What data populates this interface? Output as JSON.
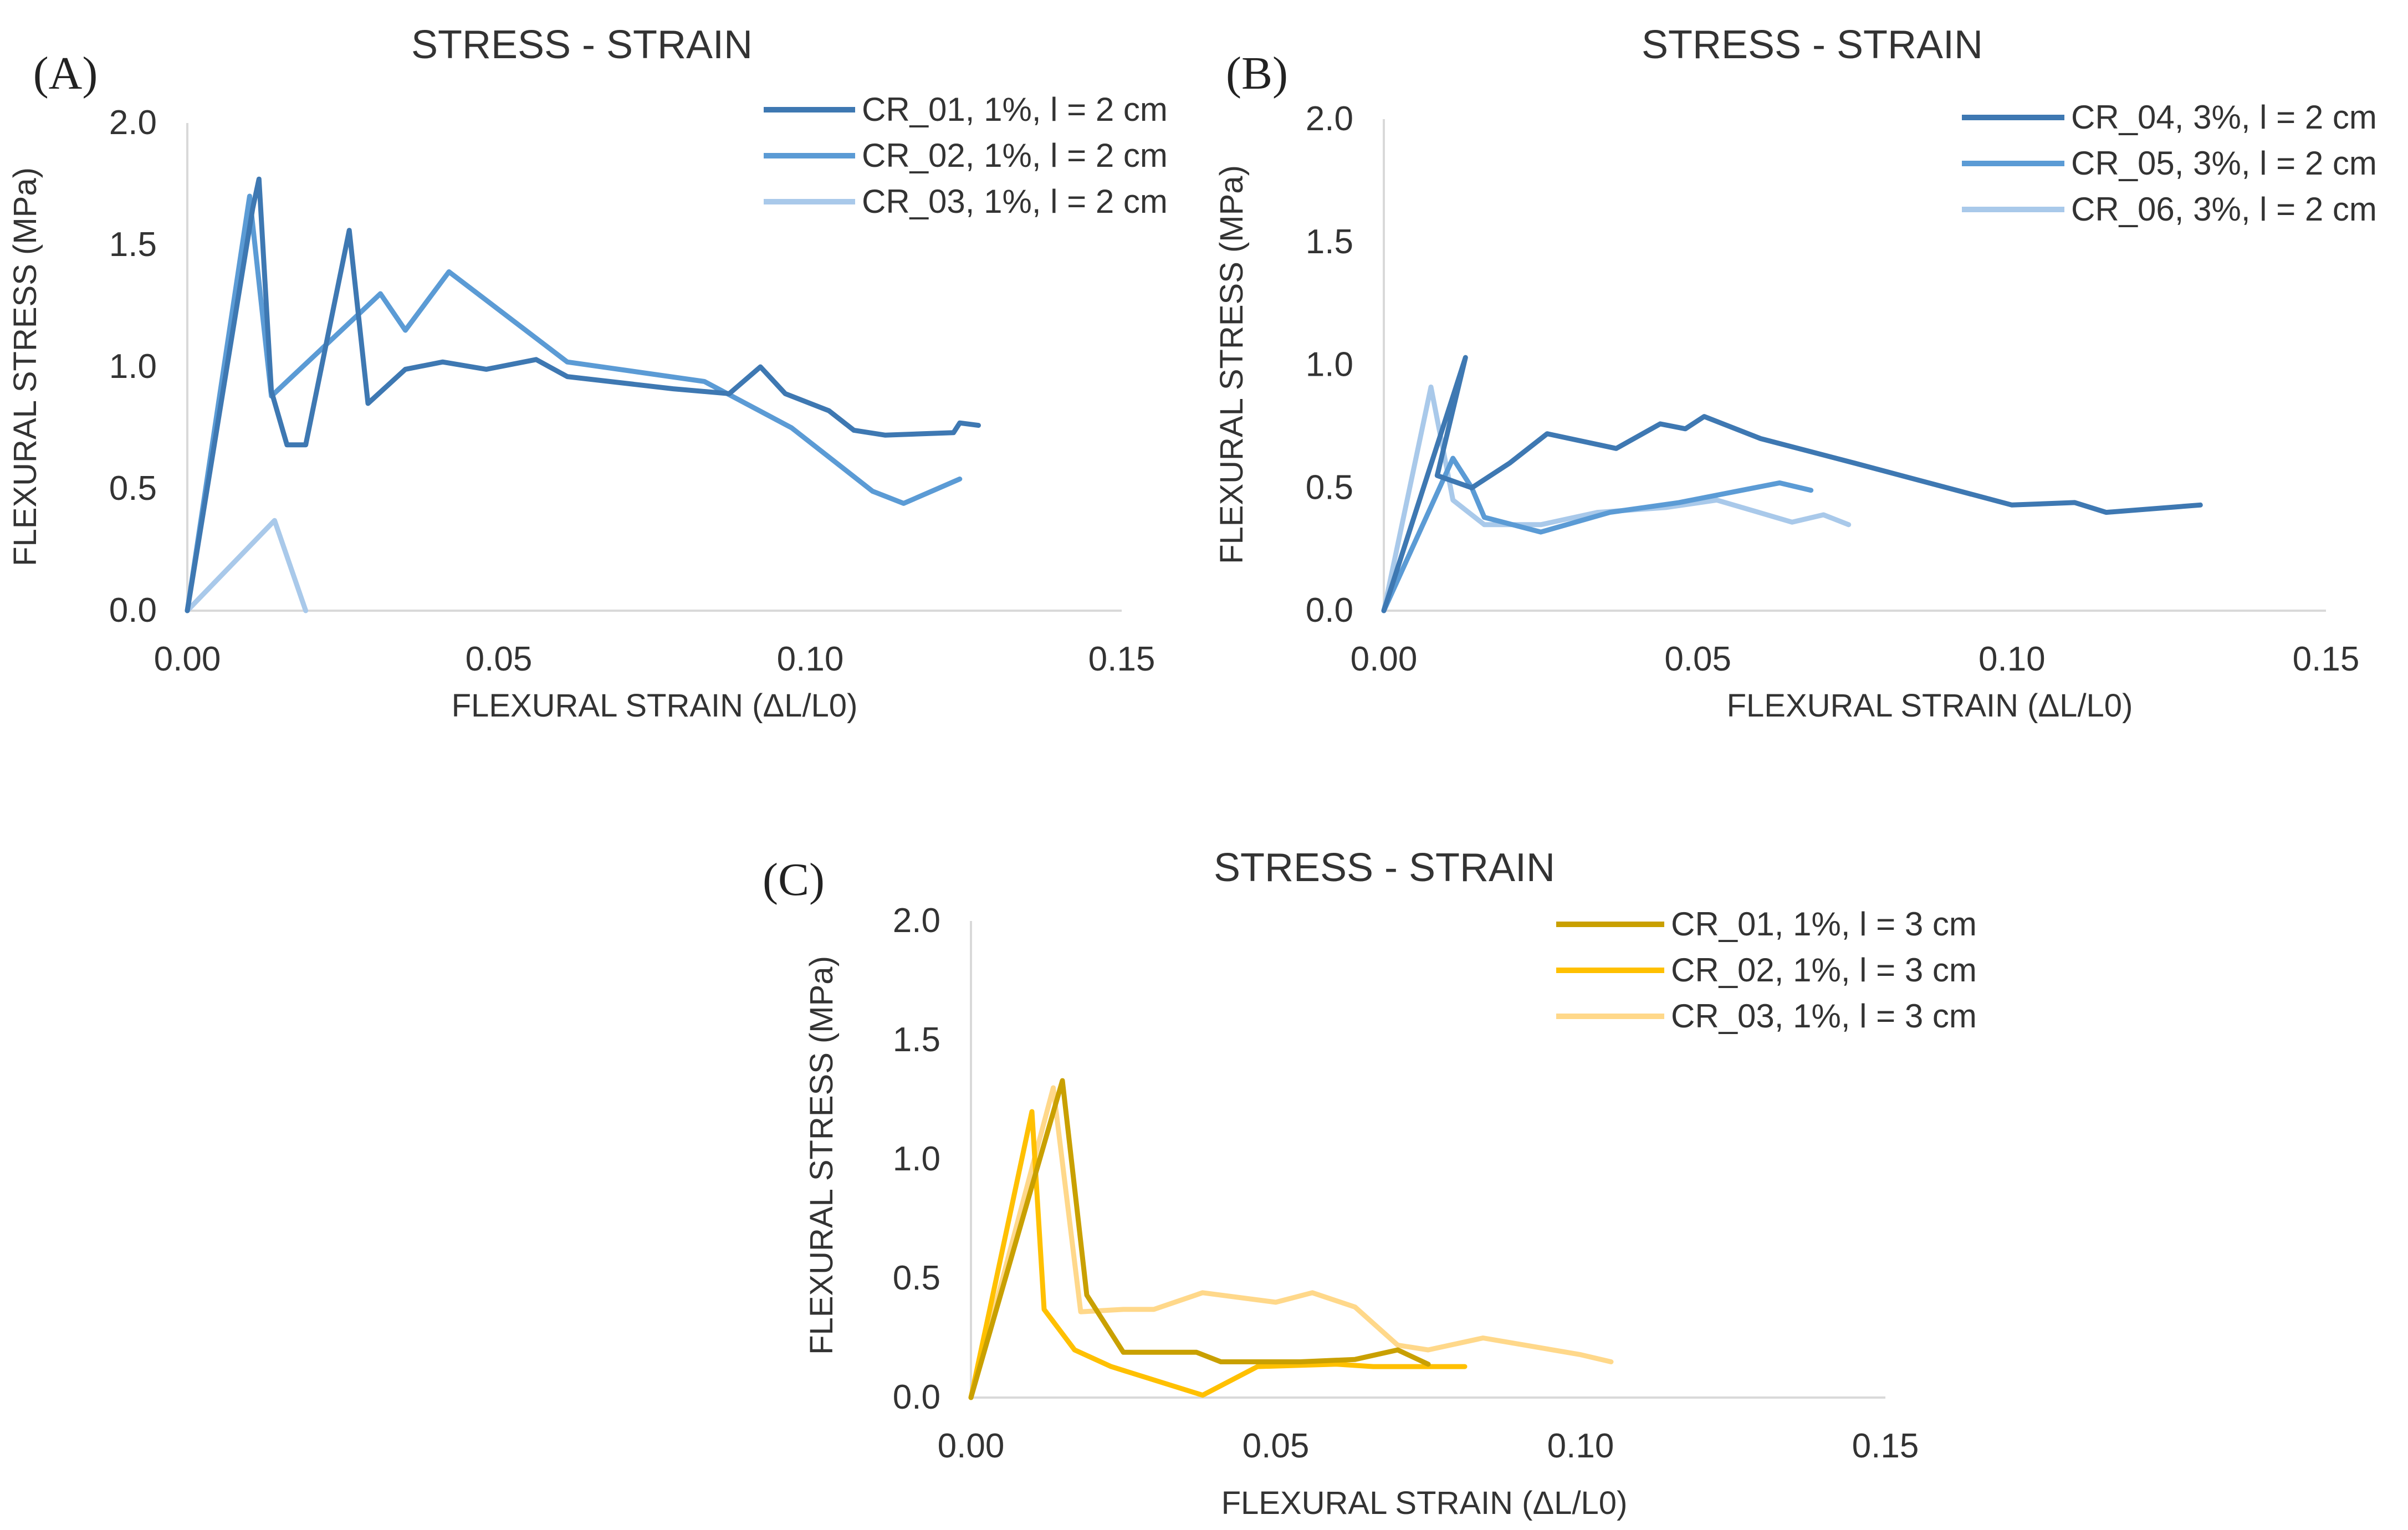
{
  "chart_data": [
    {
      "type": "line",
      "panel_label": "(A)",
      "title": "STRESS - STRAIN",
      "xlabel": "FLEXURAL STRAIN (ΔL/L0)",
      "ylabel": "FLEXURAL STRESS (MPa)",
      "xlim": [
        0,
        0.15
      ],
      "ylim": [
        0,
        2.0
      ],
      "x_ticks": [
        "0.00",
        "0.05",
        "0.10",
        "0.15"
      ],
      "y_ticks": [
        "0.0",
        "0.5",
        "1.0",
        "1.5",
        "2.0"
      ],
      "grid": false,
      "legend_position": "top-right",
      "series": [
        {
          "name": "CR_01, 1%, l = 2 cm",
          "color": "#3e78b2",
          "points": [
            [
              0,
              0
            ],
            [
              0.0105,
              1.65
            ],
            [
              0.0115,
              1.77
            ],
            [
              0.0135,
              0.9
            ],
            [
              0.016,
              0.68
            ],
            [
              0.019,
              0.68
            ],
            [
              0.026,
              1.56
            ],
            [
              0.029,
              0.85
            ],
            [
              0.035,
              0.99
            ],
            [
              0.041,
              1.02
            ],
            [
              0.048,
              0.99
            ],
            [
              0.056,
              1.03
            ],
            [
              0.061,
              0.96
            ],
            [
              0.078,
              0.91
            ],
            [
              0.087,
              0.89
            ],
            [
              0.092,
              1.0
            ],
            [
              0.096,
              0.89
            ],
            [
              0.103,
              0.82
            ],
            [
              0.107,
              0.74
            ],
            [
              0.112,
              0.72
            ],
            [
              0.123,
              0.73
            ],
            [
              0.124,
              0.77
            ],
            [
              0.127,
              0.76
            ]
          ]
        },
        {
          "name": "CR_02, 1%, l = 2 cm",
          "color": "#5b9bd5",
          "points": [
            [
              0,
              0
            ],
            [
              0.01,
              1.7
            ],
            [
              0.0135,
              0.88
            ],
            [
              0.031,
              1.3
            ],
            [
              0.035,
              1.15
            ],
            [
              0.042,
              1.39
            ],
            [
              0.061,
              1.02
            ],
            [
              0.083,
              0.94
            ],
            [
              0.097,
              0.75
            ],
            [
              0.11,
              0.49
            ],
            [
              0.115,
              0.44
            ],
            [
              0.124,
              0.54
            ]
          ]
        },
        {
          "name": "CR_03, 1%, l = 2 cm",
          "color": "#a9c9ea",
          "points": [
            [
              0,
              0
            ],
            [
              0.014,
              0.37
            ],
            [
              0.019,
              0.0
            ]
          ]
        }
      ]
    },
    {
      "type": "line",
      "panel_label": "(B)",
      "title": "STRESS - STRAIN",
      "xlabel": "FLEXURAL STRAIN (ΔL/L0)",
      "ylabel": "FLEXURAL STRESS (MPa)",
      "xlim": [
        0,
        0.15
      ],
      "ylim": [
        0,
        2.0
      ],
      "x_ticks": [
        "0.00",
        "0.05",
        "0.10",
        "0.15"
      ],
      "y_ticks": [
        "0.0",
        "0.5",
        "1.0",
        "1.5",
        "2.0"
      ],
      "grid": false,
      "legend_position": "top-right",
      "series": [
        {
          "name": "CR_04, 3%, l = 2 cm",
          "color": "#3e78b2",
          "points": [
            [
              0,
              0
            ],
            [
              0.013,
              1.03
            ],
            [
              0.0085,
              0.55
            ],
            [
              0.014,
              0.5
            ],
            [
              0.02,
              0.6
            ],
            [
              0.026,
              0.72
            ],
            [
              0.037,
              0.66
            ],
            [
              0.044,
              0.76
            ],
            [
              0.048,
              0.74
            ],
            [
              0.051,
              0.79
            ],
            [
              0.06,
              0.7
            ],
            [
              0.075,
              0.6
            ],
            [
              0.1,
              0.43
            ],
            [
              0.11,
              0.44
            ],
            [
              0.115,
              0.4
            ],
            [
              0.13,
              0.43
            ]
          ]
        },
        {
          "name": "CR_05, 3%, l = 2 cm",
          "color": "#5b9bd5",
          "points": [
            [
              0,
              0
            ],
            [
              0.011,
              0.62
            ],
            [
              0.014,
              0.5
            ],
            [
              0.016,
              0.38
            ],
            [
              0.025,
              0.32
            ],
            [
              0.036,
              0.4
            ],
            [
              0.047,
              0.44
            ],
            [
              0.063,
              0.52
            ],
            [
              0.068,
              0.49
            ]
          ]
        },
        {
          "name": "CR_06, 3%, l = 2 cm",
          "color": "#a9c9ea",
          "points": [
            [
              0,
              0
            ],
            [
              0.0075,
              0.91
            ],
            [
              0.011,
              0.45
            ],
            [
              0.016,
              0.35
            ],
            [
              0.025,
              0.35
            ],
            [
              0.034,
              0.4
            ],
            [
              0.045,
              0.42
            ],
            [
              0.053,
              0.45
            ],
            [
              0.065,
              0.36
            ],
            [
              0.07,
              0.39
            ],
            [
              0.074,
              0.35
            ]
          ]
        }
      ]
    },
    {
      "type": "line",
      "panel_label": "(C)",
      "title": "STRESS - STRAIN",
      "xlabel": "FLEXURAL STRAIN (ΔL/L0)",
      "ylabel": "FLEXURAL STRESS (MPa)",
      "xlim": [
        0,
        0.15
      ],
      "ylim": [
        0,
        2.0
      ],
      "x_ticks": [
        "0.00",
        "0.05",
        "0.10",
        "0.15"
      ],
      "y_ticks": [
        "0.0",
        "0.5",
        "1.0",
        "1.5",
        "2.0"
      ],
      "grid": false,
      "legend_position": "top-right",
      "series": [
        {
          "name": "CR_01, 1%, l = 3 cm",
          "color": "#c9a000",
          "points": [
            [
              0,
              0
            ],
            [
              0.015,
              1.33
            ],
            [
              0.019,
              0.43
            ],
            [
              0.025,
              0.19
            ],
            [
              0.037,
              0.19
            ],
            [
              0.041,
              0.15
            ],
            [
              0.054,
              0.15
            ],
            [
              0.063,
              0.16
            ],
            [
              0.07,
              0.2
            ],
            [
              0.075,
              0.14
            ]
          ]
        },
        {
          "name": "CR_02, 1%, l = 3 cm",
          "color": "#ffc000",
          "points": [
            [
              0,
              0
            ],
            [
              0.01,
              1.2
            ],
            [
              0.012,
              0.37
            ],
            [
              0.017,
              0.2
            ],
            [
              0.023,
              0.13
            ],
            [
              0.038,
              0.01
            ],
            [
              0.047,
              0.13
            ],
            [
              0.06,
              0.14
            ],
            [
              0.066,
              0.13
            ],
            [
              0.081,
              0.13
            ]
          ]
        },
        {
          "name": "CR_03, 1%, l = 3 cm",
          "color": "#ffd88a",
          "points": [
            [
              0,
              0
            ],
            [
              0.0135,
              1.3
            ],
            [
              0.018,
              0.36
            ],
            [
              0.025,
              0.37
            ],
            [
              0.03,
              0.37
            ],
            [
              0.038,
              0.44
            ],
            [
              0.05,
              0.4
            ],
            [
              0.056,
              0.44
            ],
            [
              0.063,
              0.38
            ],
            [
              0.07,
              0.22
            ],
            [
              0.075,
              0.2
            ],
            [
              0.084,
              0.25
            ],
            [
              0.1,
              0.18
            ],
            [
              0.105,
              0.15
            ]
          ]
        }
      ]
    }
  ]
}
